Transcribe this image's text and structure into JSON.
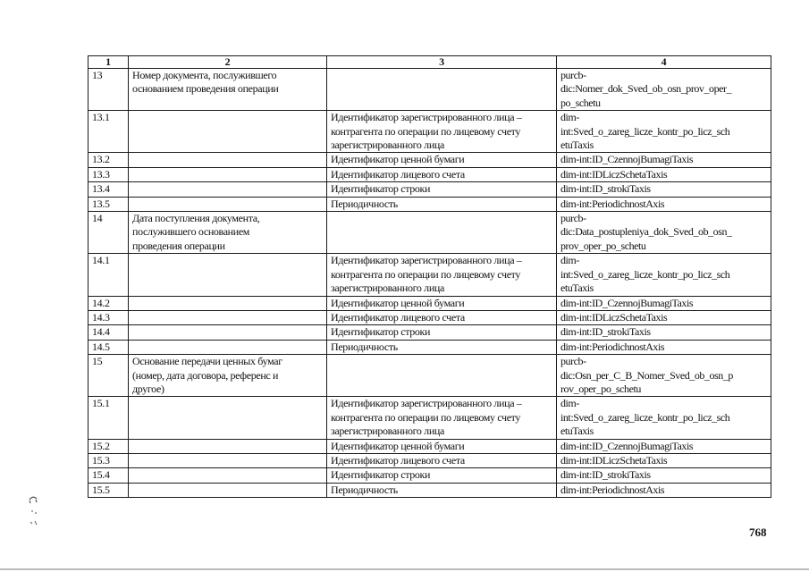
{
  "table": {
    "headers": [
      "1",
      "2",
      "3",
      "4"
    ],
    "rows": [
      [
        "13",
        "Номер документа, послужившего\nоснованием проведения операции",
        "",
        "purcb-\ndic:Nomer_dok_Sved_ob_osn_prov_oper_\npo_schetu"
      ],
      [
        "13.1",
        "",
        "Идентификатор зарегистрированного лица –\nконтрагента по операции по лицевому счету\nзарегистрированного лица",
        "dim-\nint:Sved_o_zareg_licze_kontr_po_licz_sch\netuTaxis"
      ],
      [
        "13.2",
        "",
        "Идентификатор ценной бумаги",
        "dim-int:ID_CzennojBumagiTaxis"
      ],
      [
        "13.3",
        "",
        "Идентификатор лицевого счета",
        "dim-int:IDLiczSchetaTaxis"
      ],
      [
        "13.4",
        "",
        "Идентификатор строки",
        "dim-int:ID_strokiTaxis"
      ],
      [
        "13.5",
        "",
        "Периодичность",
        "dim-int:PeriodichnostAxis"
      ],
      [
        "14",
        "Дата поступления документа,\nпослужившего основанием\nпроведения операции",
        "",
        "purcb-\ndic:Data_postupleniya_dok_Sved_ob_osn_\nprov_oper_po_schetu"
      ],
      [
        "14.1",
        "",
        "Идентификатор зарегистрированного лица –\nконтрагента по операции по лицевому счету\nзарегистрированного лица",
        "dim-\nint:Sved_o_zareg_licze_kontr_po_licz_sch\netuTaxis"
      ],
      [
        "14.2",
        "",
        "Идентификатор ценной бумаги",
        "dim-int:ID_CzennojBumagiTaxis"
      ],
      [
        "14.3",
        "",
        "Идентификатор лицевого счета",
        "dim-int:IDLiczSchetaTaxis"
      ],
      [
        "14.4",
        "",
        "Идентификатор строки",
        "dim-int:ID_strokiTaxis"
      ],
      [
        "14.5",
        "",
        "Периодичность",
        "dim-int:PeriodichnostAxis"
      ],
      [
        "15",
        "Основание передачи ценных бумаг\n(номер, дата договора, референс и\nдругое)",
        "",
        "purcb-\ndic:Osn_per_C_B_Nomer_Sved_ob_osn_p\nrov_oper_po_schetu"
      ],
      [
        "15.1",
        "",
        "Идентификатор зарегистрированного лица –\nконтрагента по операции по лицевому счету\nзарегистрированного лица",
        "dim-\nint:Sved_o_zareg_licze_kontr_po_licz_sch\netuTaxis"
      ],
      [
        "15.2",
        "",
        "Идентификатор ценной бумаги",
        "dim-int:ID_CzennojBumagiTaxis"
      ],
      [
        "15.3",
        "",
        "Идентификатор лицевого счета",
        "dim-int:IDLiczSchetaTaxis"
      ],
      [
        "15.4",
        "",
        "Идентификатор строки",
        "dim-int:ID_strokiTaxis"
      ],
      [
        "15.5",
        "",
        "Периодичность",
        "dim-int:PeriodichnostAxis"
      ]
    ]
  },
  "page_number": "768"
}
